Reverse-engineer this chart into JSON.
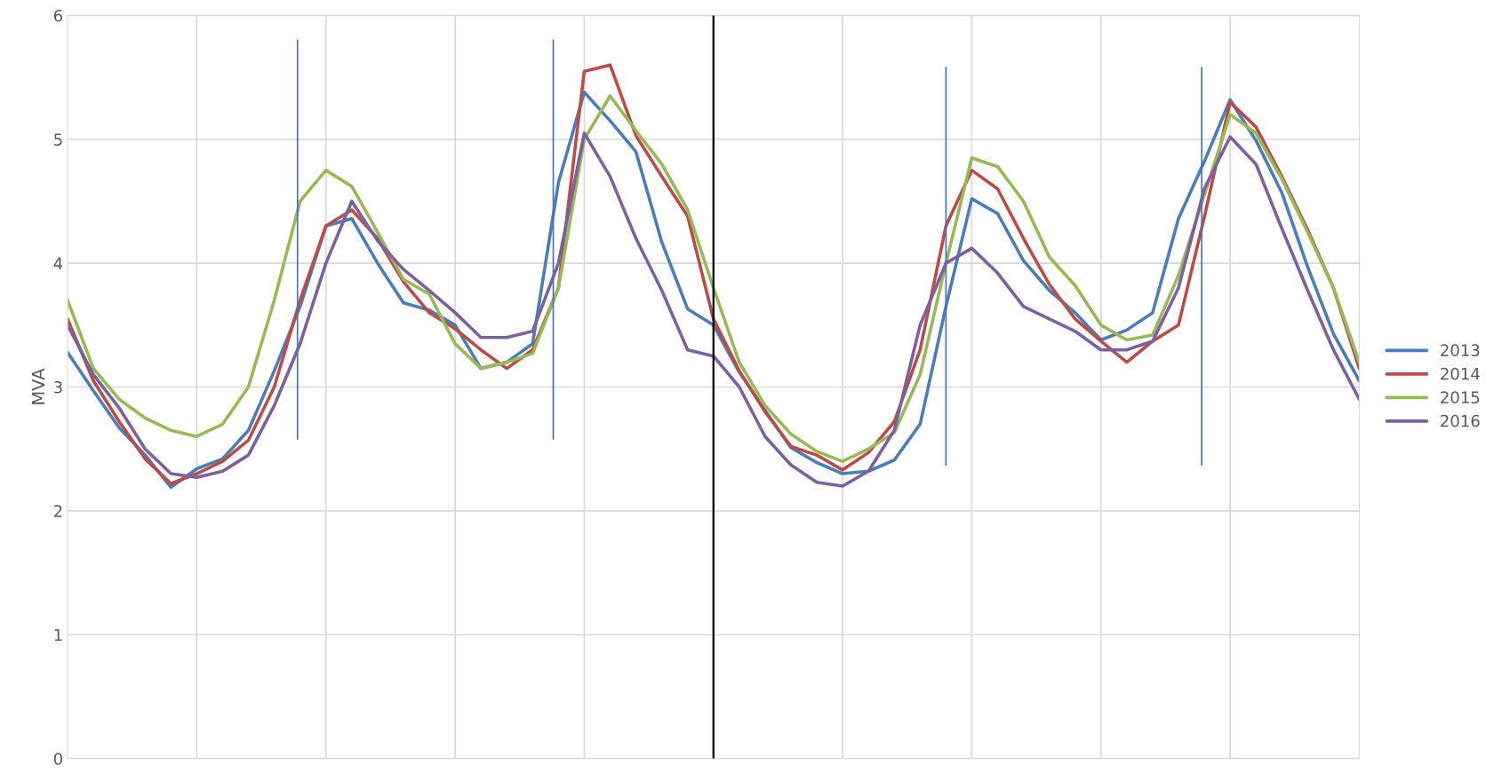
{
  "chart_data": {
    "type": "line",
    "ylabel": "MVA",
    "categories": [
      null,
      null,
      null,
      null,
      null,
      null,
      null,
      null,
      null,
      null,
      null,
      null,
      null,
      null,
      null,
      null,
      null,
      null,
      null,
      null,
      null,
      null,
      null,
      null,
      null,
      null,
      null,
      null,
      null,
      null,
      null,
      null,
      null,
      null,
      null,
      null,
      null,
      null,
      null,
      null,
      null,
      null,
      null,
      null,
      null,
      null,
      null,
      null,
      null,
      null,
      null
    ],
    "ylim": [
      0,
      6
    ],
    "yticks": [
      0,
      1,
      2,
      3,
      4,
      5,
      6
    ],
    "grid": true,
    "legend": "right",
    "marker": "none",
    "line_style": "solid",
    "series": [
      {
        "name": "2013",
        "color": "#4a7ebb",
        "values": [
          3.28,
          2.97,
          2.67,
          2.45,
          2.19,
          2.34,
          2.42,
          2.65,
          3.13,
          3.65,
          4.3,
          4.36,
          4.0,
          3.68,
          3.62,
          3.5,
          3.15,
          3.2,
          3.35,
          4.65,
          5.38,
          5.15,
          4.9,
          4.17,
          3.63,
          3.5,
          3.12,
          2.81,
          2.51,
          2.39,
          2.3,
          2.32,
          2.41,
          2.7,
          3.65,
          4.52,
          4.4,
          4.02,
          3.78,
          3.6,
          3.38,
          3.46,
          3.6,
          4.36,
          4.82,
          5.32,
          4.99,
          4.57,
          3.97,
          3.43,
          3.05
        ]
      },
      {
        "name": "2014",
        "color": "#be4b48",
        "values": [
          3.55,
          3.05,
          2.72,
          2.42,
          2.22,
          2.3,
          2.4,
          2.57,
          3.0,
          3.7,
          4.3,
          4.43,
          4.2,
          3.85,
          3.6,
          3.47,
          3.3,
          3.15,
          3.3,
          3.8,
          5.55,
          5.6,
          5.03,
          4.7,
          4.38,
          3.55,
          3.13,
          2.8,
          2.52,
          2.45,
          2.33,
          2.47,
          2.72,
          3.3,
          4.3,
          4.75,
          4.6,
          4.2,
          3.83,
          3.55,
          3.37,
          3.2,
          3.37,
          3.5,
          4.37,
          5.3,
          5.1,
          4.7,
          4.27,
          3.8,
          3.15
        ]
      },
      {
        "name": "2015",
        "color": "#98b954",
        "values": [
          3.7,
          3.15,
          2.9,
          2.75,
          2.65,
          2.6,
          2.7,
          3.0,
          3.7,
          4.5,
          4.75,
          4.62,
          4.25,
          3.87,
          3.75,
          3.35,
          3.15,
          3.2,
          3.27,
          3.8,
          5.0,
          5.35,
          5.07,
          4.8,
          4.43,
          3.8,
          3.2,
          2.85,
          2.62,
          2.48,
          2.4,
          2.5,
          2.63,
          3.1,
          4.0,
          4.85,
          4.78,
          4.5,
          4.05,
          3.82,
          3.5,
          3.38,
          3.42,
          3.9,
          4.55,
          5.2,
          5.05,
          4.68,
          4.25,
          3.8,
          3.2
        ]
      },
      {
        "name": "2016",
        "color": "#7d60a0",
        "values": [
          3.5,
          3.1,
          2.83,
          2.5,
          2.3,
          2.27,
          2.32,
          2.45,
          2.85,
          3.35,
          4.0,
          4.5,
          4.18,
          3.95,
          3.78,
          3.6,
          3.4,
          3.4,
          3.45,
          4.0,
          5.05,
          4.7,
          4.2,
          3.78,
          3.3,
          3.25,
          3.0,
          2.6,
          2.37,
          2.23,
          2.2,
          2.32,
          2.65,
          3.5,
          4.0,
          4.12,
          3.92,
          3.65,
          3.55,
          3.45,
          3.3,
          3.3,
          3.37,
          3.8,
          4.6,
          5.02,
          4.8,
          4.28,
          3.78,
          3.3,
          2.9
        ]
      }
    ]
  }
}
